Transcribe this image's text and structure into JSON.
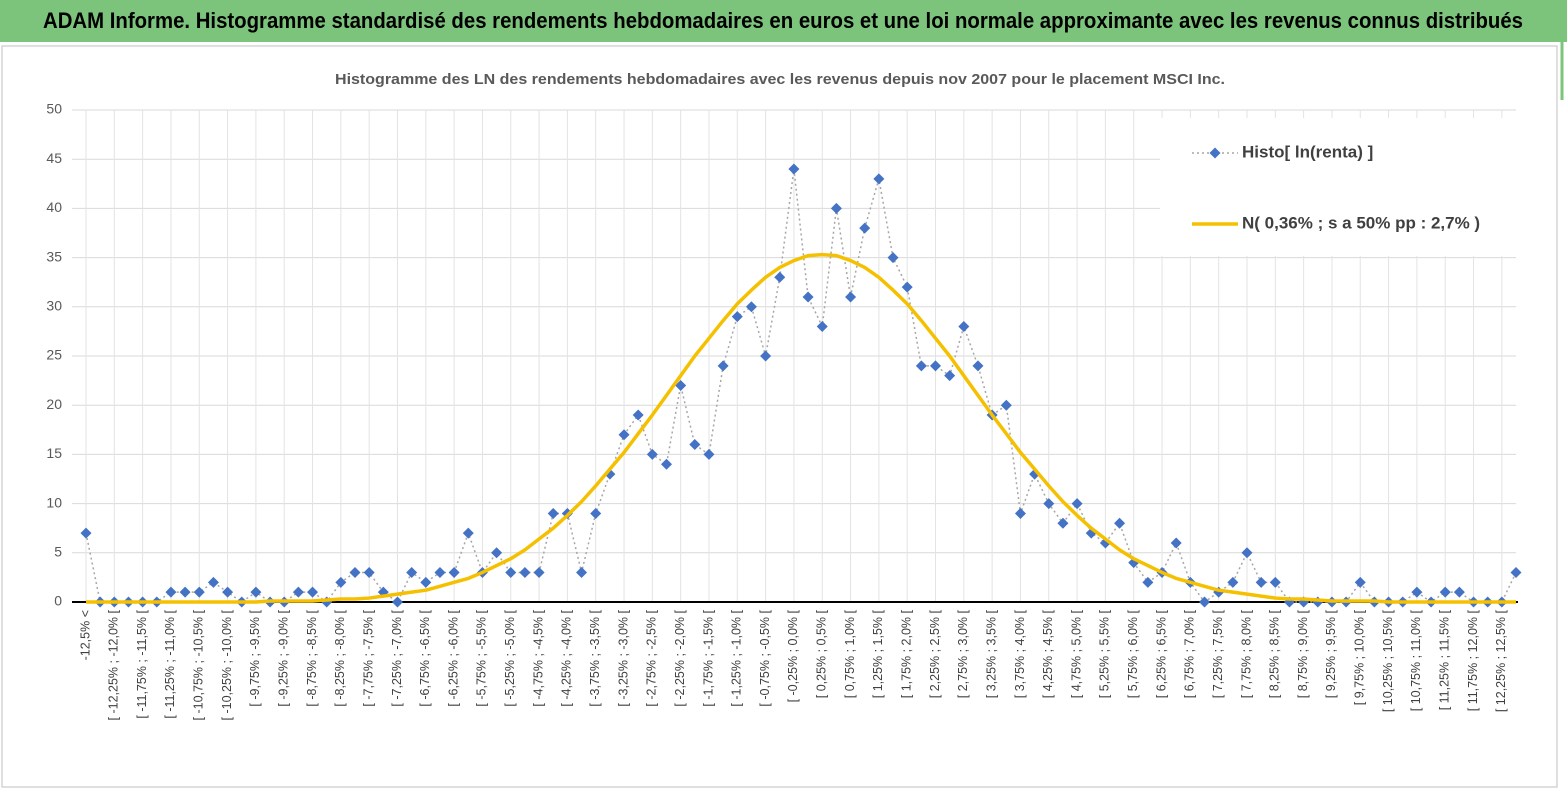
{
  "header": {
    "title": "ADAM Informe. Histogramme standardisé des rendements hebdomadaires en euros et une loi normale approximante avec les revenus connus distribués"
  },
  "chart_data": {
    "type": "line",
    "title": "Histogramme  des LN des rendements hebdomadaires avec les revenus depuis nov 2007 pour le placement MSCI Inc.",
    "categories": [
      "-12,5% <",
      null,
      "[ -12,25% ; -12,0% [",
      null,
      "[ -11,75% ; -11,5% [",
      null,
      "[ -11,25% ; -11,0% [",
      null,
      "[ -10,75% ; -10,5% [",
      null,
      "[ -10,25% ; -10,0% [",
      null,
      "[ -9,75% ; -9,5% [",
      null,
      "[ -9,25% ; -9,0% [",
      null,
      "[ -8,75% ; -8,5% [",
      null,
      "[ -8,25% ; -8,0% [",
      null,
      "[ -7,75% ; -7,5% [",
      null,
      "[ -7,25% ; -7,0% [",
      null,
      "[ -6,75% ; -6,5% [",
      null,
      "[ -6,25% ; -6,0% [",
      null,
      "[ -5,75% ; -5,5% [",
      null,
      "[ -5,25% ; -5,0% [",
      null,
      "[ -4,75% ; -4,5% [",
      null,
      "[ -4,25% ; -4,0% [",
      null,
      "[ -3,75% ; -3,5% [",
      null,
      "[ -3,25% ; -3,0% [",
      null,
      "[ -2,75% ; -2,5% [",
      null,
      "[ -2,25% ; -2,0% [",
      null,
      "[ -1,75% ; -1,5% [",
      null,
      "[ -1,25% ; -1,0% [",
      null,
      "[ -0,75% ; -0,5% [",
      null,
      "[ -0,25% ; 0,0% [",
      null,
      "[ 0,25% ; 0,5% [",
      null,
      "[ 0,75% ; 1,0% [",
      null,
      "[ 1,25% ; 1,5% [",
      null,
      "[ 1,75% ; 2,0% [",
      null,
      "[ 2,25% ; 2,5% [",
      null,
      "[ 2,75% ; 3,0% [",
      null,
      "[ 3,25% ; 3,5% [",
      null,
      "[ 3,75% ; 4,0% [",
      null,
      "[ 4,25% ; 4,5% [",
      null,
      "[ 4,75% ; 5,0% [",
      null,
      "[ 5,25% ; 5,5% [",
      null,
      "[ 5,75% ; 6,0% [",
      null,
      "[ 6,25% ; 6,5% [",
      null,
      "[ 6,75% ; 7,0% [",
      null,
      "[ 7,25% ; 7,5% [",
      null,
      "[ 7,75% ; 8,0% [",
      null,
      "[ 8,25% ; 8,5% [",
      null,
      "[ 8,75% ; 9,0% [",
      null,
      "[ 9,25% ; 9,5% [",
      null,
      "[ 9,75% ; 10,0% [",
      null,
      "[ 10,25% ; 10,5% [",
      null,
      "[ 10,75% ; 11,0% [",
      null,
      "[ 11,25% ; 11,5% [",
      null,
      "[ 11,75% ; 12,0% [",
      null,
      "[ 12,25% ; 12,5% [",
      null
    ],
    "series": [
      {
        "name": "Histo[ ln(renta) ]",
        "color": "#4472c4",
        "line_color": "#a6a6a6",
        "marker": "diamond",
        "dashed": true,
        "values": [
          7,
          0,
          0,
          0,
          0,
          0,
          1,
          1,
          1,
          2,
          1,
          0,
          1,
          0,
          0,
          1,
          1,
          0,
          2,
          3,
          3,
          1,
          0,
          3,
          2,
          3,
          3,
          7,
          3,
          5,
          3,
          3,
          3,
          9,
          9,
          3,
          9,
          13,
          17,
          19,
          15,
          14,
          22,
          16,
          15,
          24,
          29,
          30,
          25,
          33,
          44,
          31,
          28,
          40,
          31,
          38,
          43,
          35,
          32,
          24,
          24,
          23,
          28,
          24,
          19,
          20,
          9,
          13,
          10,
          8,
          10,
          7,
          6,
          8,
          4,
          2,
          3,
          6,
          2,
          0,
          1,
          2,
          5,
          2,
          2,
          0,
          0,
          0,
          0,
          0,
          2,
          0,
          0,
          0,
          1,
          0,
          1,
          1,
          0,
          0,
          0,
          3
        ]
      },
      {
        "name": "N( 0,36% ; s a 50% pp : 2,7% )",
        "color": "#f5c000",
        "line_color": "#f5c000",
        "marker": "none",
        "dashed": false,
        "values": [
          0,
          0,
          0,
          0,
          0,
          0,
          0,
          0,
          0,
          0,
          0,
          0,
          0,
          0.1,
          0.1,
          0.1,
          0.1,
          0.2,
          0.3,
          0.3,
          0.4,
          0.6,
          0.8,
          1.0,
          1.2,
          1.6,
          2.0,
          2.4,
          3.0,
          3.7,
          4.4,
          5.3,
          6.4,
          7.5,
          8.8,
          10.2,
          11.8,
          13.5,
          15.2,
          17.1,
          19.0,
          21.0,
          23.0,
          25.0,
          26.8,
          28.6,
          30.3,
          31.7,
          33.0,
          34.0,
          34.7,
          35.2,
          35.3,
          35.2,
          34.7,
          34.0,
          33.0,
          31.7,
          30.3,
          28.6,
          26.8,
          25.0,
          23.0,
          21.0,
          19.0,
          17.1,
          15.2,
          13.5,
          11.8,
          10.2,
          8.8,
          7.5,
          6.4,
          5.3,
          4.4,
          3.7,
          3.0,
          2.4,
          2.0,
          1.6,
          1.2,
          1.0,
          0.8,
          0.6,
          0.4,
          0.3,
          0.3,
          0.2,
          0.1,
          0.1,
          0.1,
          0.1,
          0,
          0,
          0,
          0,
          0,
          0,
          0,
          0,
          0,
          0
        ]
      }
    ],
    "ylim": [
      0,
      50
    ],
    "yticks": [
      0,
      5,
      10,
      15,
      20,
      25,
      30,
      35,
      40,
      45,
      50
    ],
    "grid": true,
    "legend": "top-right"
  }
}
